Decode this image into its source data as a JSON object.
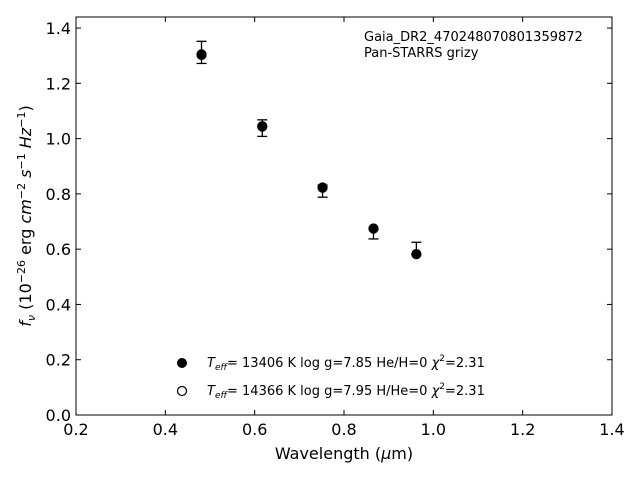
{
  "chart_data": {
    "type": "scatter",
    "xlabel_main": "Wavelength (",
    "xlabel_mu": "μ",
    "xlabel_end": "m)",
    "ylabel": {
      "f": "f",
      "nu": "ν",
      "open": " (10",
      "exp1": "−26",
      "unit1": " erg ",
      "cm": "cm",
      "exp2": "−2",
      "s": " s",
      "exp3": "−1",
      "hz": " Hz",
      "exp4": "−1",
      "close": ")"
    },
    "xlim": [
      0.2,
      1.4
    ],
    "ylim": [
      0.0,
      1.44
    ],
    "xticks": [
      0.2,
      0.4,
      0.6,
      0.8,
      1.0,
      1.2,
      1.4
    ],
    "xtick_labels": [
      "0.2",
      "0.4",
      "0.6",
      "0.8",
      "1.0",
      "1.2",
      "1.4"
    ],
    "yticks": [
      0.0,
      0.2,
      0.4,
      0.6,
      0.8,
      1.0,
      1.2,
      1.4
    ],
    "ytick_labels": [
      "0.0",
      "0.2",
      "0.4",
      "0.6",
      "0.8",
      "1.0",
      "1.2",
      "1.4"
    ],
    "grid": false,
    "annotation": [
      "Gaia_DR2_470248070801359872",
      "Pan-STARRS grizy"
    ],
    "observed": [
      {
        "x": 0.481,
        "y": 1.312,
        "yerr": 0.04
      },
      {
        "x": 0.617,
        "y": 1.038,
        "yerr": 0.03
      },
      {
        "x": 0.752,
        "y": 0.81,
        "yerr": 0.022
      },
      {
        "x": 0.866,
        "y": 0.655,
        "yerr": 0.018
      },
      {
        "x": 0.962,
        "y": 0.603,
        "yerr": 0.022
      }
    ],
    "model_filled": [
      {
        "x": 0.481,
        "y": 1.302
      },
      {
        "x": 0.617,
        "y": 1.043
      },
      {
        "x": 0.752,
        "y": 0.822
      },
      {
        "x": 0.866,
        "y": 0.674
      },
      {
        "x": 0.962,
        "y": 0.582
      }
    ],
    "model_open": [
      {
        "x": 0.481,
        "y": 1.305
      },
      {
        "x": 0.617,
        "y": 1.045
      },
      {
        "x": 0.752,
        "y": 0.823
      },
      {
        "x": 0.866,
        "y": 0.675
      },
      {
        "x": 0.962,
        "y": 0.582
      }
    ],
    "legend_position": "lower-center",
    "legend": [
      {
        "marker": "filled",
        "T": "T",
        "sub": "eff",
        "rest": "= 13406 K  log g=7.85  He/H=0  ",
        "chi": "χ",
        "sup": "2",
        "chi_rest": "=2.31"
      },
      {
        "marker": "open",
        "T": "T",
        "sub": "eff",
        "rest": "= 14366 K  log g=7.95  H/He=0  ",
        "chi": "χ",
        "sup": "2",
        "chi_rest": "=2.31"
      }
    ]
  }
}
